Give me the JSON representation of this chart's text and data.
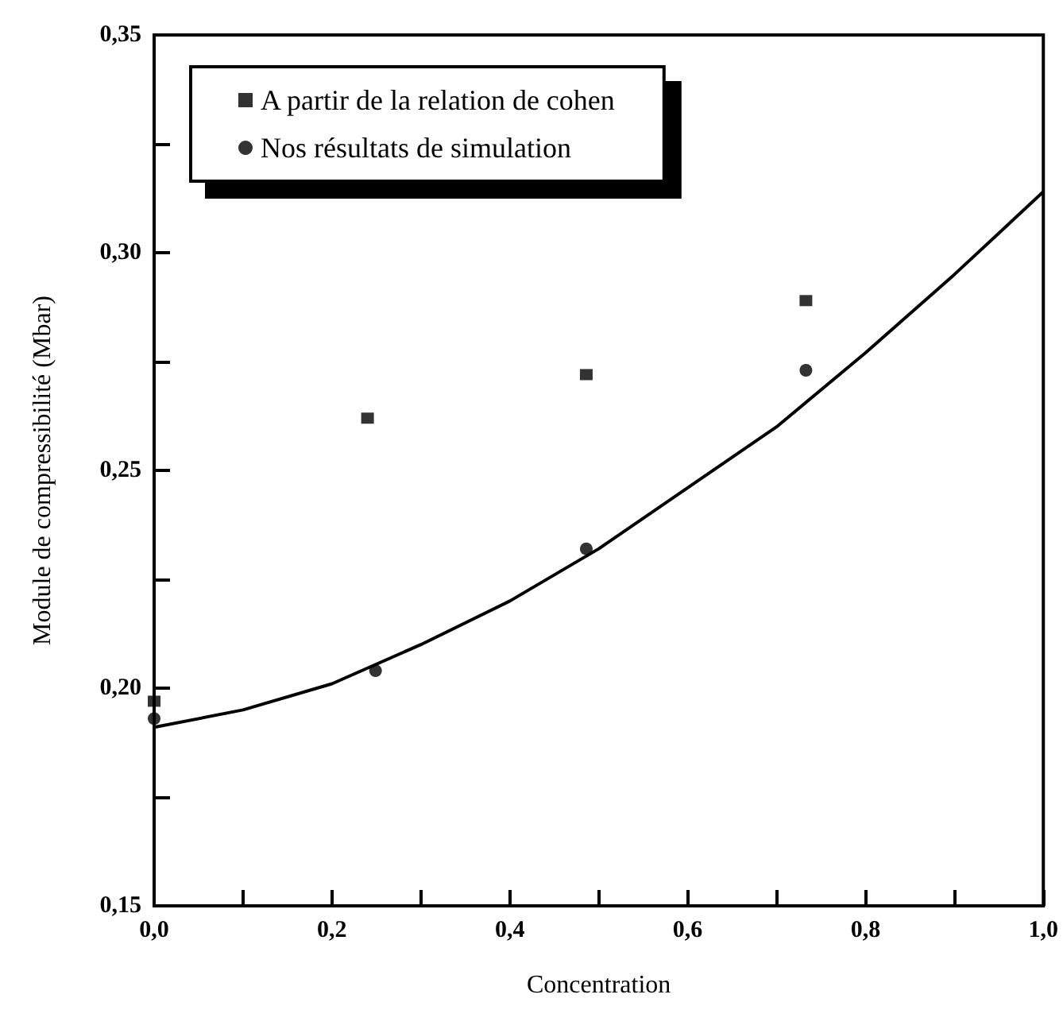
{
  "chart_data": {
    "type": "scatter",
    "xlabel": "Concentration",
    "ylabel": "Module de compressibilité (Mbar)",
    "xlim": [
      0,
      1
    ],
    "ylim": [
      0.15,
      0.35
    ],
    "xticks": [
      {
        "value": 0,
        "label": "0,0"
      },
      {
        "value": 0.1,
        "label": null
      },
      {
        "value": 0.2,
        "label": "0,2"
      },
      {
        "value": 0.3,
        "label": null
      },
      {
        "value": 0.4,
        "label": "0,4"
      },
      {
        "value": 0.5,
        "label": null
      },
      {
        "value": 0.6,
        "label": "0,6"
      },
      {
        "value": 0.7,
        "label": null
      },
      {
        "value": 0.8,
        "label": "0,8"
      },
      {
        "value": 0.9,
        "label": null
      },
      {
        "value": 1,
        "label": "1,0"
      }
    ],
    "yticks": [
      {
        "value": 0.15,
        "label": "0,15"
      },
      {
        "value": 0.175,
        "label": null
      },
      {
        "value": 0.2,
        "label": "0,20"
      },
      {
        "value": 0.225,
        "label": null
      },
      {
        "value": 0.25,
        "label": "0,25"
      },
      {
        "value": 0.275,
        "label": null
      },
      {
        "value": 0.3,
        "label": "0,30"
      },
      {
        "value": 0.325,
        "label": null
      },
      {
        "value": 0.35,
        "label": "0,35"
      }
    ],
    "grid": false,
    "legend": "top",
    "series": [
      {
        "name": "A partir de la relation de cohen",
        "color": "#000000",
        "marker": "square",
        "x": [
          0,
          0.24,
          0.486,
          0.733
        ],
        "values": [
          0.197,
          0.262,
          0.272,
          0.289
        ]
      },
      {
        "name": "Nos résultats de simulation",
        "color": "#000000",
        "marker": "circle",
        "x": [
          0,
          0.249,
          0.486,
          0.733
        ],
        "values": [
          0.193,
          0.204,
          0.232,
          0.273
        ]
      },
      {
        "type": "line",
        "color": "#000000",
        "marker": "none",
        "line_style": "solid",
        "x": [
          0,
          0.1,
          0.2,
          0.3,
          0.4,
          0.5,
          0.6,
          0.7,
          0.8,
          0.9,
          1
        ],
        "values": [
          0.191,
          0.195,
          0.201,
          0.21,
          0.22,
          0.232,
          0.246,
          0.26,
          0.277,
          0.295,
          0.314
        ]
      }
    ]
  }
}
